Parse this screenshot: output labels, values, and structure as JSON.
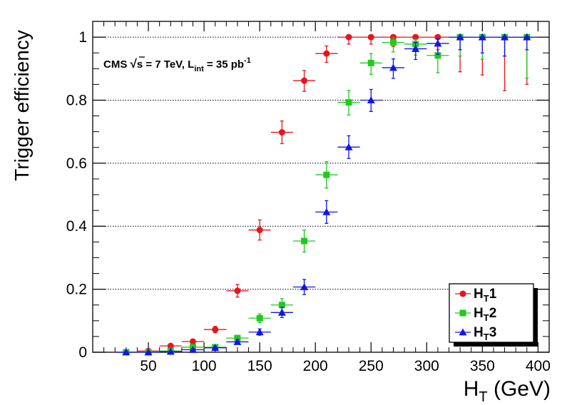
{
  "chart_data": {
    "type": "scatter",
    "title": "",
    "xlabel_main": "H",
    "xlabel_sub": "T",
    "xlabel_rest": " (GeV)",
    "ylabel": "Trigger efficiency",
    "xlim": [
      0,
      410
    ],
    "ylim": [
      0,
      1.05
    ],
    "xticks": [
      50,
      100,
      150,
      200,
      250,
      300,
      350,
      400
    ],
    "xtick_labels": [
      "50",
      "100",
      "150",
      "200",
      "250",
      "300",
      "350",
      "400"
    ],
    "yticks": [
      0,
      0.2,
      0.4,
      0.6,
      0.8,
      1
    ],
    "ytick_labels": [
      "0",
      "0.2",
      "0.4",
      "0.6",
      "0.8",
      "1"
    ],
    "gridlines_y": [
      0.2,
      0.4,
      0.6,
      0.8,
      1.0
    ],
    "annotation": {
      "part1": "CMS ",
      "sqrt": "√",
      "s": "s",
      "part2": " = 7 TeV, L",
      "sub": "int",
      "part3": " = 35 pb",
      "sup": "-1"
    },
    "legend_position": "bottom-right",
    "series": [
      {
        "name": "HT1",
        "label_main": "H",
        "label_sub": "T",
        "label_num": "1",
        "marker": "circle",
        "color": "#e8141c",
        "x_halfwidth": 10,
        "points": [
          {
            "x": 30,
            "y": 0.0,
            "eu": 0.003,
            "ed": 0.0
          },
          {
            "x": 50,
            "y": 0.004,
            "eu": 0.004,
            "ed": 0.003
          },
          {
            "x": 70,
            "y": 0.02,
            "eu": 0.005,
            "ed": 0.005
          },
          {
            "x": 90,
            "y": 0.034,
            "eu": 0.006,
            "ed": 0.006
          },
          {
            "x": 110,
            "y": 0.072,
            "eu": 0.01,
            "ed": 0.01
          },
          {
            "x": 130,
            "y": 0.195,
            "eu": 0.02,
            "ed": 0.02
          },
          {
            "x": 150,
            "y": 0.388,
            "eu": 0.032,
            "ed": 0.032
          },
          {
            "x": 170,
            "y": 0.698,
            "eu": 0.036,
            "ed": 0.036
          },
          {
            "x": 190,
            "y": 0.862,
            "eu": 0.032,
            "ed": 0.034
          },
          {
            "x": 210,
            "y": 0.948,
            "eu": 0.024,
            "ed": 0.028
          },
          {
            "x": 230,
            "y": 1.0,
            "eu": 0.0,
            "ed": 0.022
          },
          {
            "x": 250,
            "y": 1.0,
            "eu": 0.0,
            "ed": 0.022
          },
          {
            "x": 270,
            "y": 1.0,
            "eu": 0.0,
            "ed": 0.03
          },
          {
            "x": 290,
            "y": 1.0,
            "eu": 0.0,
            "ed": 0.035
          },
          {
            "x": 310,
            "y": 1.0,
            "eu": 0.0,
            "ed": 0.04
          },
          {
            "x": 330,
            "y": 1.0,
            "eu": 0.0,
            "ed": 0.11
          },
          {
            "x": 350,
            "y": 1.0,
            "eu": 0.0,
            "ed": 0.12
          },
          {
            "x": 370,
            "y": 1.0,
            "eu": 0.0,
            "ed": 0.17
          },
          {
            "x": 390,
            "y": 1.0,
            "eu": 0.0,
            "ed": 0.15
          }
        ]
      },
      {
        "name": "HT2",
        "label_main": "H",
        "label_sub": "T",
        "label_num": "2",
        "marker": "square",
        "color": "#1ecb1e",
        "x_halfwidth": 10,
        "points": [
          {
            "x": 30,
            "y": 0.0,
            "eu": 0.002,
            "ed": 0.0
          },
          {
            "x": 50,
            "y": 0.0,
            "eu": 0.002,
            "ed": 0.0
          },
          {
            "x": 70,
            "y": 0.004,
            "eu": 0.003,
            "ed": 0.003
          },
          {
            "x": 90,
            "y": 0.016,
            "eu": 0.004,
            "ed": 0.004
          },
          {
            "x": 110,
            "y": 0.016,
            "eu": 0.004,
            "ed": 0.004
          },
          {
            "x": 130,
            "y": 0.045,
            "eu": 0.008,
            "ed": 0.008
          },
          {
            "x": 150,
            "y": 0.108,
            "eu": 0.014,
            "ed": 0.014
          },
          {
            "x": 170,
            "y": 0.15,
            "eu": 0.02,
            "ed": 0.02
          },
          {
            "x": 190,
            "y": 0.353,
            "eu": 0.035,
            "ed": 0.035
          },
          {
            "x": 210,
            "y": 0.563,
            "eu": 0.042,
            "ed": 0.042
          },
          {
            "x": 230,
            "y": 0.793,
            "eu": 0.038,
            "ed": 0.04
          },
          {
            "x": 250,
            "y": 0.918,
            "eu": 0.03,
            "ed": 0.036
          },
          {
            "x": 270,
            "y": 0.983,
            "eu": 0.015,
            "ed": 0.03
          },
          {
            "x": 290,
            "y": 0.978,
            "eu": 0.015,
            "ed": 0.035
          },
          {
            "x": 310,
            "y": 0.942,
            "eu": 0.035,
            "ed": 0.055
          },
          {
            "x": 330,
            "y": 1.0,
            "eu": 0.0,
            "ed": 0.06
          },
          {
            "x": 350,
            "y": 1.0,
            "eu": 0.0,
            "ed": 0.07
          },
          {
            "x": 370,
            "y": 1.0,
            "eu": 0.0,
            "ed": 0.06
          },
          {
            "x": 390,
            "y": 1.0,
            "eu": 0.0,
            "ed": 0.13
          }
        ]
      },
      {
        "name": "HT3",
        "label_main": "H",
        "label_sub": "T",
        "label_num": "3",
        "marker": "triangle",
        "color": "#1414e6",
        "x_halfwidth": 10,
        "points": [
          {
            "x": 30,
            "y": 0.0,
            "eu": 0.002,
            "ed": 0.0
          },
          {
            "x": 50,
            "y": 0.0,
            "eu": 0.002,
            "ed": 0.0
          },
          {
            "x": 70,
            "y": 0.002,
            "eu": 0.002,
            "ed": 0.002
          },
          {
            "x": 90,
            "y": 0.008,
            "eu": 0.003,
            "ed": 0.003
          },
          {
            "x": 110,
            "y": 0.014,
            "eu": 0.004,
            "ed": 0.004
          },
          {
            "x": 130,
            "y": 0.033,
            "eu": 0.007,
            "ed": 0.007
          },
          {
            "x": 150,
            "y": 0.064,
            "eu": 0.01,
            "ed": 0.01
          },
          {
            "x": 170,
            "y": 0.126,
            "eu": 0.016,
            "ed": 0.016
          },
          {
            "x": 190,
            "y": 0.207,
            "eu": 0.024,
            "ed": 0.024
          },
          {
            "x": 210,
            "y": 0.445,
            "eu": 0.036,
            "ed": 0.036
          },
          {
            "x": 230,
            "y": 0.651,
            "eu": 0.036,
            "ed": 0.036
          },
          {
            "x": 250,
            "y": 0.8,
            "eu": 0.034,
            "ed": 0.036
          },
          {
            "x": 270,
            "y": 0.903,
            "eu": 0.028,
            "ed": 0.034
          },
          {
            "x": 290,
            "y": 0.963,
            "eu": 0.02,
            "ed": 0.034
          },
          {
            "x": 310,
            "y": 0.98,
            "eu": 0.015,
            "ed": 0.035
          },
          {
            "x": 330,
            "y": 1.0,
            "eu": 0.0,
            "ed": 0.04
          },
          {
            "x": 350,
            "y": 1.0,
            "eu": 0.0,
            "ed": 0.05
          },
          {
            "x": 370,
            "y": 1.0,
            "eu": 0.0,
            "ed": 0.06
          },
          {
            "x": 390,
            "y": 1.0,
            "eu": 0.0,
            "ed": 0.04
          }
        ]
      }
    ]
  }
}
